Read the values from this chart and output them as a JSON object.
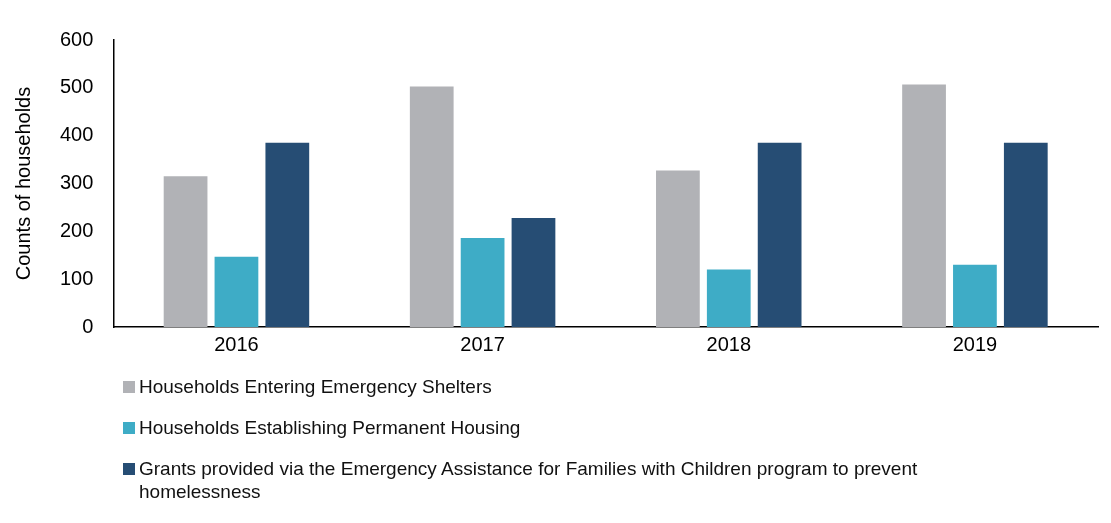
{
  "chart_data": {
    "type": "bar",
    "ylabel": "Counts of households",
    "categories": [
      "2016",
      "2017",
      "2018",
      "2019"
    ],
    "series": [
      {
        "name": "Households Entering Emergency Shelters",
        "color": "#b1b2b6",
        "values": [
          315,
          503,
          327,
          507
        ]
      },
      {
        "name": "Households Establishing Permanent Housing",
        "color": "#3eacc6",
        "values": [
          147,
          186,
          120,
          130
        ]
      },
      {
        "name": "Grants provided via the Emergency Assistance for Families with Children program to prevent homelessness",
        "color": "#264d74",
        "values": [
          385,
          228,
          385,
          385
        ]
      }
    ],
    "ylim": [
      0,
      600
    ],
    "yticks": [
      0,
      100,
      200,
      300,
      400,
      500,
      600
    ],
    "grid": false,
    "legend": "bottom"
  }
}
